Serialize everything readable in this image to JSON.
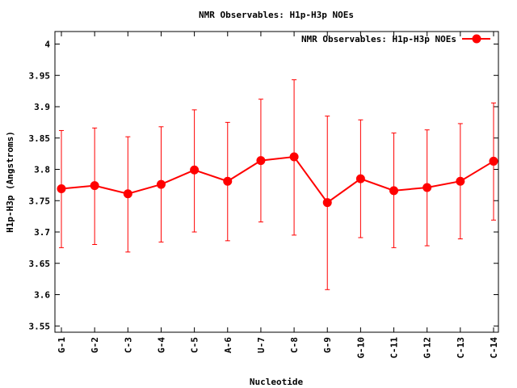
{
  "chart_data": {
    "type": "line",
    "title": "NMR Observables: H1p-H3p NOEs",
    "xlabel": "Nucleotide",
    "ylabel": "H1p-H3p (Angstroms)",
    "ylim": [
      3.54,
      4.02
    ],
    "yticks": [
      "3.55",
      "3.6",
      "3.65",
      "3.7",
      "3.75",
      "3.8",
      "3.85",
      "3.9",
      "3.95",
      "4"
    ],
    "categories": [
      "G-1",
      "G-2",
      "C-3",
      "G-4",
      "C-5",
      "A-6",
      "U-7",
      "C-8",
      "G-9",
      "G-10",
      "C-11",
      "G-12",
      "C-13",
      "C-14"
    ],
    "legend_position": "top-right",
    "grid": false,
    "color": "#ff0000",
    "series": [
      {
        "name": "NMR Observables: H1p-H3p NOEs",
        "values": [
          3.769,
          3.774,
          3.761,
          3.776,
          3.799,
          3.781,
          3.814,
          3.82,
          3.747,
          3.785,
          3.766,
          3.771,
          3.781,
          3.813
        ],
        "error_low": [
          3.675,
          3.68,
          3.668,
          3.684,
          3.7,
          3.686,
          3.716,
          3.695,
          3.608,
          3.691,
          3.675,
          3.678,
          3.689,
          3.719
        ],
        "error_high": [
          3.862,
          3.866,
          3.852,
          3.868,
          3.895,
          3.875,
          3.912,
          3.943,
          3.885,
          3.879,
          3.858,
          3.863,
          3.873,
          3.906
        ]
      }
    ]
  }
}
